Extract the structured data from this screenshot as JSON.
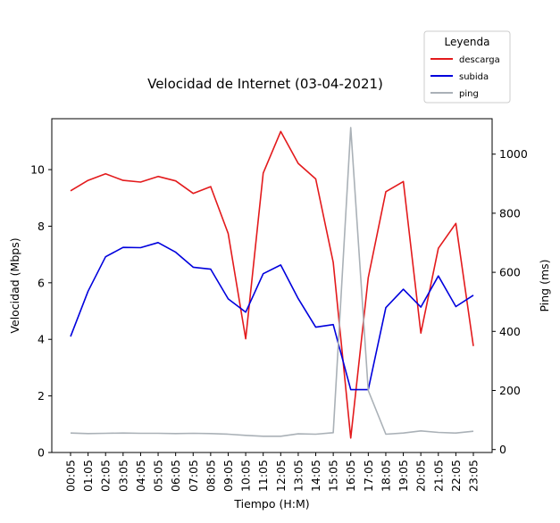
{
  "chart_data": {
    "type": "line",
    "title": "Velocidad de Internet (03-04-2021)",
    "xlabel": "Tiempo (H:M)",
    "ylabel": "Velocidad (Mbps)",
    "y2label": "Ping (ms)",
    "categories": [
      "00:05",
      "01:05",
      "02:05",
      "03:05",
      "04:05",
      "05:05",
      "06:05",
      "07:05",
      "08:05",
      "09:05",
      "10:05",
      "11:05",
      "12:05",
      "13:05",
      "14:05",
      "15:05",
      "16:05",
      "17:05",
      "18:05",
      "19:05",
      "20:05",
      "21:05",
      "22:05",
      "23:05"
    ],
    "ylim": [
      0,
      11.8
    ],
    "y2lim": [
      -10,
      1120
    ],
    "yticks": [
      0,
      2,
      4,
      6,
      8,
      10
    ],
    "y2ticks": [
      0,
      200,
      400,
      600,
      800,
      1000
    ],
    "grid": false,
    "legend": {
      "title": "Leyenda",
      "placement": "top-right, outside plot"
    },
    "series": [
      {
        "name": "descarga",
        "axis": "left",
        "color": "#e31a1c",
        "values": [
          9.25,
          9.62,
          9.85,
          9.62,
          9.56,
          9.76,
          9.6,
          9.16,
          9.4,
          7.74,
          4.02,
          9.88,
          11.35,
          10.22,
          9.67,
          6.72,
          0.51,
          6.18,
          9.22,
          9.58,
          4.22,
          7.22,
          8.1,
          3.76
        ]
      },
      {
        "name": "subida",
        "axis": "left",
        "color": "#0000dd",
        "values": [
          4.1,
          5.7,
          6.92,
          7.25,
          7.24,
          7.42,
          7.08,
          6.55,
          6.48,
          5.43,
          4.96,
          6.32,
          6.63,
          5.44,
          4.43,
          4.52,
          2.22,
          2.22,
          5.12,
          5.77,
          5.14,
          6.24,
          5.16,
          5.56
        ]
      },
      {
        "name": "ping",
        "axis": "right",
        "color": "#aab1b7",
        "values": [
          56,
          54,
          55,
          56,
          55,
          55,
          54,
          55,
          54,
          52,
          48,
          45,
          45,
          53,
          52,
          57,
          1090,
          200,
          52,
          56,
          63,
          58,
          56,
          62
        ]
      }
    ]
  }
}
